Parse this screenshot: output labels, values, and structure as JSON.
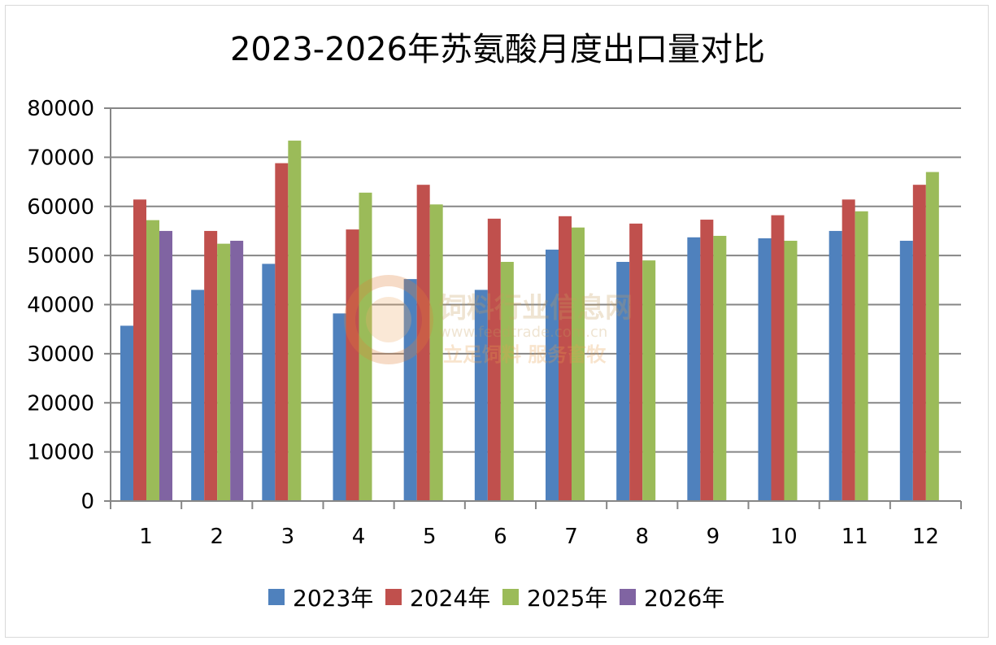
{
  "chart_data": {
    "type": "bar",
    "title": "2023-2026年苏氨酸月度出口量对比",
    "xlabel": "",
    "ylabel": "",
    "categories": [
      "1",
      "2",
      "3",
      "4",
      "5",
      "6",
      "7",
      "8",
      "9",
      "10",
      "11",
      "12"
    ],
    "ylim": [
      0,
      80000
    ],
    "yticks": [
      0,
      10000,
      20000,
      30000,
      40000,
      50000,
      60000,
      70000,
      80000
    ],
    "grid": true,
    "legend_position": "bottom",
    "series": [
      {
        "name": "2023年",
        "color": "#4f81bd",
        "values": [
          35700,
          43000,
          48300,
          38200,
          45200,
          43000,
          51200,
          48700,
          53700,
          53500,
          55000,
          53000
        ]
      },
      {
        "name": "2024年",
        "color": "#c0504d",
        "values": [
          61400,
          55000,
          68800,
          55300,
          64400,
          57500,
          58000,
          56500,
          57300,
          58200,
          61400,
          64400
        ]
      },
      {
        "name": "2025年",
        "color": "#9bbb59",
        "values": [
          57200,
          52400,
          73400,
          62800,
          60400,
          48700,
          55700,
          49000,
          54000,
          53000,
          59000,
          67000
        ]
      },
      {
        "name": "2026年",
        "color": "#8064a2",
        "values": [
          55000,
          53000,
          null,
          null,
          null,
          null,
          null,
          null,
          null,
          null,
          null,
          null
        ]
      }
    ]
  },
  "watermark": {
    "line1": "饲料行业信息网",
    "line2": "www.feedtrade.com.cn",
    "line3": "立足饲料  服务畜牧"
  }
}
